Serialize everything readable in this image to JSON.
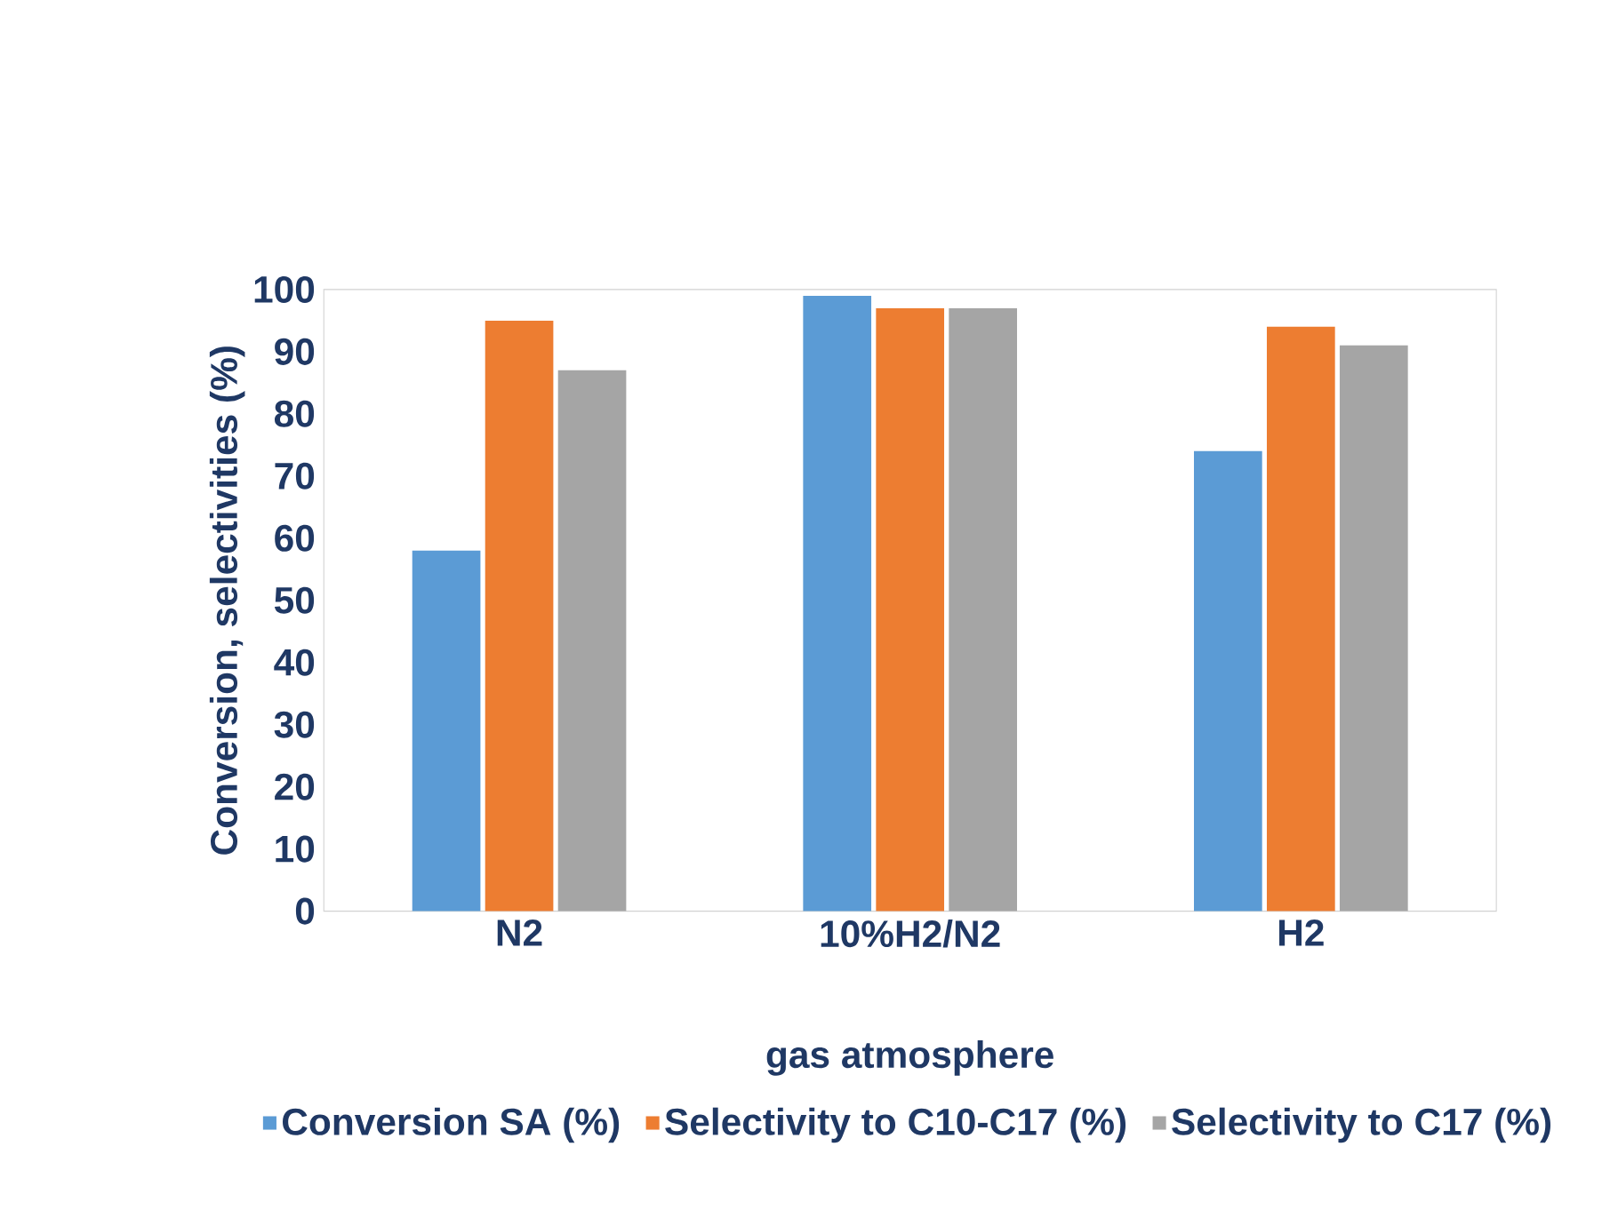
{
  "chart_data": {
    "type": "bar",
    "xlabel": "gas atmosphere",
    "ylabel": "Conversion, selectivities (%)",
    "categories": [
      "N2",
      "10%H2/N2",
      "H2"
    ],
    "series": [
      {
        "name": "Conversion SA (%)",
        "color": "#5b9bd5",
        "values": [
          58,
          99,
          74
        ]
      },
      {
        "name": "Selectivity to C10-C17 (%)",
        "color": "#ed7d31",
        "values": [
          95,
          97,
          94
        ]
      },
      {
        "name": "Selectivity to C17 (%)",
        "color": "#a5a5a5",
        "values": [
          87,
          97,
          91
        ]
      }
    ],
    "ylim": [
      0,
      100
    ],
    "yticks": [
      0,
      10,
      20,
      30,
      40,
      50,
      60,
      70,
      80,
      90,
      100
    ],
    "grid": false,
    "legend": "bottom"
  }
}
